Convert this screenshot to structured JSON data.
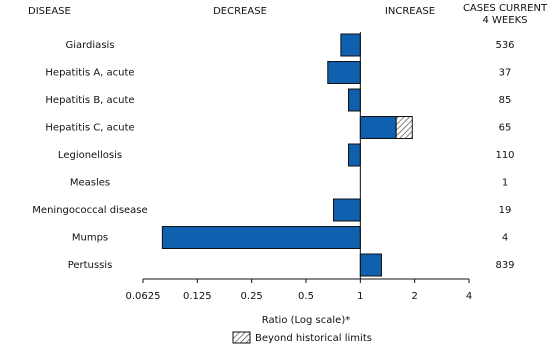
{
  "chart_data": {
    "type": "bar",
    "orientation": "horizontal",
    "log_scale": true,
    "column_headers": {
      "disease": "DISEASE",
      "decrease": "DECREASE",
      "increase": "INCREASE",
      "cases": [
        "CASES CURRENT",
        "4 WEEKS"
      ]
    },
    "categories": [
      "Giardiasis",
      "Hepatitis A, acute",
      "Hepatitis B, acute",
      "Hepatitis C, acute",
      "Legionellosis",
      "Measles",
      "Meningococcal disease",
      "Mumps",
      "Pertussis"
    ],
    "values": [
      0.78,
      0.66,
      0.86,
      1.94,
      0.86,
      1,
      0.71,
      0.08,
      1.31
    ],
    "historical_limit": [
      null,
      null,
      null,
      1.58,
      null,
      null,
      null,
      null,
      null
    ],
    "cases": [
      536,
      37,
      85,
      65,
      110,
      1,
      19,
      4,
      839
    ],
    "color": "#1060b0",
    "xlim": [
      0.0625,
      4
    ],
    "xticks": [
      0.0625,
      0.125,
      0.25,
      0.5,
      1,
      2,
      4
    ],
    "xlabel": "Ratio (Log scale)*",
    "legend": "Beyond historical limits"
  }
}
